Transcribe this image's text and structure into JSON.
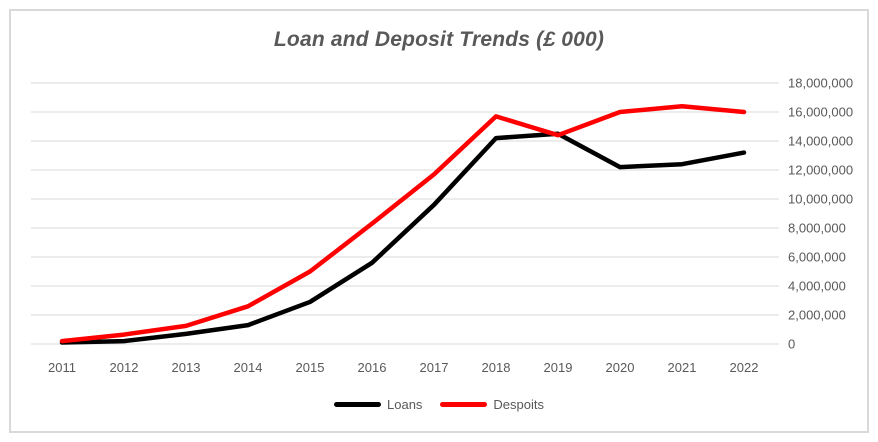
{
  "chart_data": {
    "type": "line",
    "title": "Loan and Deposit Trends (£ 000)",
    "categories": [
      "2011",
      "2012",
      "2013",
      "2014",
      "2015",
      "2016",
      "2017",
      "2018",
      "2019",
      "2020",
      "2021",
      "2022"
    ],
    "series": [
      {
        "name": "Loans",
        "color": "#000000",
        "values": [
          100000,
          200000,
          700000,
          1300000,
          2900000,
          5600000,
          9600000,
          14200000,
          14500000,
          12200000,
          12400000,
          13200000
        ]
      },
      {
        "name": "Despoits",
        "color": "#ff0000",
        "values": [
          200000,
          650000,
          1250000,
          2600000,
          5000000,
          8300000,
          11700000,
          15700000,
          14400000,
          16000000,
          16400000,
          16000000
        ]
      }
    ],
    "y_axis": {
      "min": 0,
      "max": 18000000,
      "step": 2000000,
      "side": "right",
      "tick_labels": [
        "0",
        "2,000,000",
        "4,000,000",
        "6,000,000",
        "8,000,000",
        "10,000,000",
        "12,000,000",
        "14,000,000",
        "16,000,000",
        "18,000,000"
      ]
    },
    "x_axis_label": "",
    "y_axis_label": "",
    "grid": true,
    "legend_position": "bottom",
    "colors": {
      "text": "#595959",
      "grid": "#d9d9d9",
      "frame_border": "#d9d9d9",
      "background": "#ffffff"
    }
  }
}
